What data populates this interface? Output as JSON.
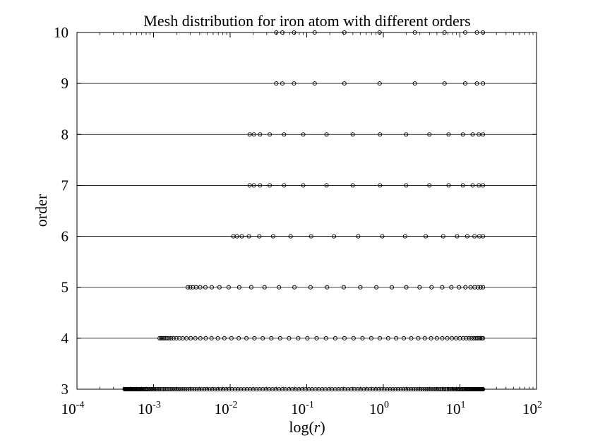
{
  "chart_data": {
    "type": "scatter",
    "title": "Mesh distribution for iron atom with different orders",
    "xlabel": "log(r)",
    "ylabel": "order",
    "xscale": "log",
    "xlim": [
      0.0001,
      100
    ],
    "ylim": [
      3,
      10
    ],
    "x_ticks": [
      {
        "value": 0.0001,
        "base": "10",
        "exp": "-4"
      },
      {
        "value": 0.001,
        "base": "10",
        "exp": "-3"
      },
      {
        "value": 0.01,
        "base": "10",
        "exp": "-2"
      },
      {
        "value": 0.1,
        "base": "10",
        "exp": "-1"
      },
      {
        "value": 1,
        "base": "10",
        "exp": "0"
      },
      {
        "value": 10,
        "base": "10",
        "exp": "1"
      },
      {
        "value": 100,
        "base": "10",
        "exp": "2"
      }
    ],
    "y_ticks": [
      3,
      4,
      5,
      6,
      7,
      8,
      9,
      10
    ],
    "grid": "horizontal lines at each order",
    "marker": "open circle",
    "r_max": 20,
    "series": [
      {
        "order": 10,
        "r_min": 0.04,
        "points": 11
      },
      {
        "order": 9,
        "r_min": 0.04,
        "points": 11
      },
      {
        "order": 8,
        "r_min": 0.018,
        "points": 16
      },
      {
        "order": 7,
        "r_min": 0.018,
        "points": 16
      },
      {
        "order": 6,
        "r_min": 0.011,
        "points": 19
      },
      {
        "order": 5,
        "r_min": 0.0028,
        "points": 32
      },
      {
        "order": 4,
        "r_min": 0.0012,
        "points": 62
      },
      {
        "order": 3,
        "r_min": 0.00042,
        "points": 190
      }
    ]
  }
}
